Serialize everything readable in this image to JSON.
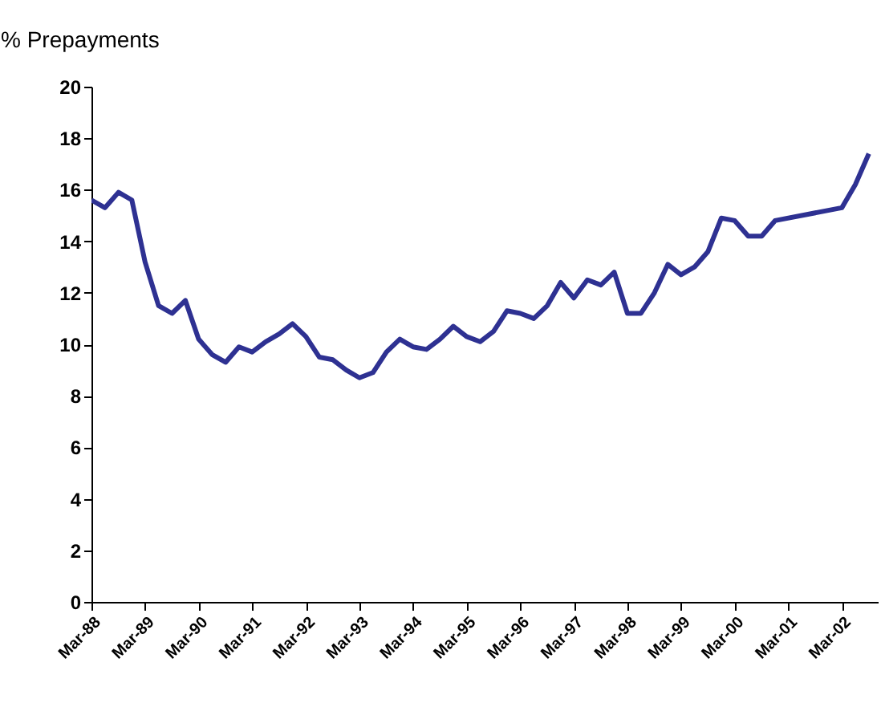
{
  "chart_data": {
    "type": "line",
    "ylabel": "% Prepayments",
    "x": [
      "1988-03",
      "1988-06",
      "1988-09",
      "1988-12",
      "1989-03",
      "1989-06",
      "1989-09",
      "1989-12",
      "1990-03",
      "1990-06",
      "1990-09",
      "1990-12",
      "1991-03",
      "1991-06",
      "1991-09",
      "1991-12",
      "1992-03",
      "1992-06",
      "1992-09",
      "1992-12",
      "1993-03",
      "1993-06",
      "1993-09",
      "1993-12",
      "1994-03",
      "1994-06",
      "1994-09",
      "1994-12",
      "1995-03",
      "1995-06",
      "1995-09",
      "1995-12",
      "1996-03",
      "1996-06",
      "1996-09",
      "1996-12",
      "1997-03",
      "1997-06",
      "1997-09",
      "1997-12",
      "1998-03",
      "1998-06",
      "1998-09",
      "1998-12",
      "1999-03",
      "1999-06",
      "1999-09",
      "1999-12",
      "2000-03",
      "2000-06",
      "2000-09",
      "2000-12",
      "2002-03",
      "2002-06",
      "2002-09"
    ],
    "series": [
      {
        "color": "#2e3192",
        "values": [
          15.6,
          15.3,
          15.9,
          15.6,
          13.2,
          11.5,
          11.2,
          11.7,
          10.2,
          9.6,
          9.3,
          9.9,
          9.7,
          10.1,
          10.4,
          10.8,
          10.3,
          9.5,
          9.4,
          9.0,
          8.7,
          8.9,
          9.7,
          10.2,
          9.9,
          9.8,
          10.2,
          10.7,
          10.3,
          10.1,
          10.5,
          11.3,
          11.2,
          11.0,
          11.5,
          12.4,
          11.8,
          12.5,
          12.3,
          12.8,
          11.2,
          11.2,
          12.0,
          13.1,
          12.7,
          13.0,
          13.6,
          14.9,
          14.8,
          14.2,
          14.2,
          14.8,
          15.3,
          16.2,
          17.4
        ]
      }
    ],
    "xlim": [
      "1988-03",
      "2002-11"
    ],
    "xticks": [
      {
        "value": "1988-03",
        "label": "Mar-88"
      },
      {
        "value": "1989-03",
        "label": "Mar-89"
      },
      {
        "value": "1990-03",
        "label": "Mar-90"
      },
      {
        "value": "1991-03",
        "label": "Mar-91"
      },
      {
        "value": "1992-03",
        "label": "Mar-92"
      },
      {
        "value": "1993-03",
        "label": "Mar-93"
      },
      {
        "value": "1994-03",
        "label": "Mar-94"
      },
      {
        "value": "1995-03",
        "label": "Mar-95"
      },
      {
        "value": "1996-03",
        "label": "Mar-96"
      },
      {
        "value": "1997-03",
        "label": "Mar-97"
      },
      {
        "value": "1998-03",
        "label": "Mar-98"
      },
      {
        "value": "1999-03",
        "label": "Mar-99"
      },
      {
        "value": "2000-03",
        "label": "Mar-00"
      },
      {
        "value": "2001-03",
        "label": "Mar-01"
      },
      {
        "value": "2002-03",
        "label": "Mar-02"
      }
    ],
    "ylim": [
      0,
      20
    ],
    "yticks": [
      0,
      2,
      4,
      6,
      8,
      10,
      12,
      14,
      16,
      18,
      20
    ],
    "grid": false,
    "legend": false,
    "marker": "none",
    "line_style": "solid"
  }
}
